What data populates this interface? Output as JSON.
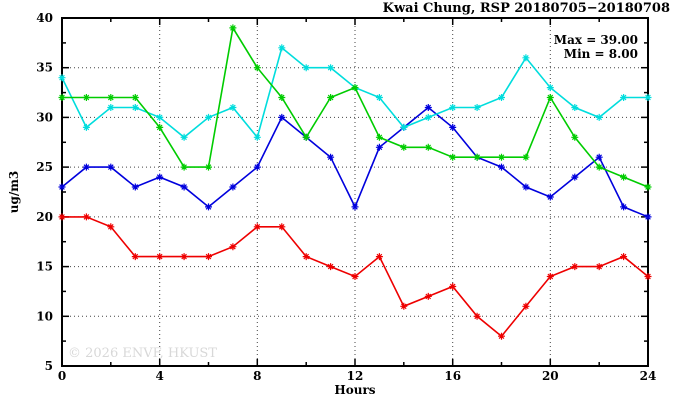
{
  "title": "Kwai Chung, RSP 20180705−20180708",
  "legend": {
    "max_label": "Max = 39.00",
    "min_label": "Min =  8.00"
  },
  "watermark": "© 2026 ENVF, HKUST",
  "colors": {
    "red": "#ee0000",
    "blue": "#0000dd",
    "cyan": "#00dddd",
    "green": "#00cc00",
    "grid": "#444444",
    "axis": "#000000",
    "watermark": "#d8d8d8"
  },
  "chart_data": {
    "type": "line",
    "title": "Kwai Chung, RSP 20180705−20180708",
    "xlabel": "Hours",
    "ylabel": "ug/m3",
    "xlim": [
      0,
      24
    ],
    "ylim": [
      5,
      40
    ],
    "grid": true,
    "x_gridlines": [
      4,
      8,
      12,
      16,
      20
    ],
    "y_gridlines": [
      10,
      15,
      20,
      25,
      30,
      35
    ],
    "x_major_ticks": [
      0,
      4,
      8,
      12,
      16,
      20,
      24
    ],
    "x_minor_ticks": [
      2,
      6,
      10,
      14,
      18,
      22
    ],
    "y_major_ticks": [
      5,
      10,
      15,
      20,
      25,
      30,
      35,
      40
    ],
    "y_minor_ticks": [
      7.5,
      12.5,
      17.5,
      22.5,
      27.5,
      32.5,
      37.5
    ],
    "stats": {
      "max": 39.0,
      "min": 8.0
    },
    "x": [
      0,
      1,
      2,
      3,
      4,
      5,
      6,
      7,
      8,
      9,
      10,
      11,
      12,
      13,
      14,
      15,
      16,
      17,
      18,
      19,
      20,
      21,
      22,
      23,
      24
    ],
    "series": [
      {
        "name": "red",
        "color": "#ee0000",
        "marker": "asterisk",
        "values": [
          20,
          20,
          19,
          16,
          16,
          16,
          16,
          17,
          19,
          19,
          16,
          15,
          14,
          16,
          11,
          12,
          13,
          10,
          8,
          11,
          14,
          15,
          15,
          16,
          14
        ]
      },
      {
        "name": "blue",
        "color": "#0000dd",
        "marker": "asterisk",
        "values": [
          23,
          25,
          25,
          23,
          24,
          23,
          21,
          23,
          25,
          30,
          28,
          26,
          21,
          27,
          29,
          31,
          29,
          26,
          25,
          23,
          22,
          24,
          26,
          21,
          20
        ]
      },
      {
        "name": "cyan",
        "color": "#00dddd",
        "marker": "asterisk",
        "values": [
          34,
          29,
          31,
          31,
          30,
          28,
          30,
          31,
          28,
          37,
          35,
          35,
          33,
          32,
          29,
          30,
          31,
          31,
          32,
          36,
          33,
          31,
          30,
          32,
          32
        ]
      },
      {
        "name": "green",
        "color": "#00cc00",
        "marker": "asterisk",
        "values": [
          32,
          32,
          32,
          32,
          29,
          25,
          25,
          39,
          35,
          32,
          28,
          32,
          33,
          28,
          27,
          27,
          26,
          26,
          26,
          26,
          32,
          28,
          25,
          24,
          23
        ]
      }
    ]
  }
}
